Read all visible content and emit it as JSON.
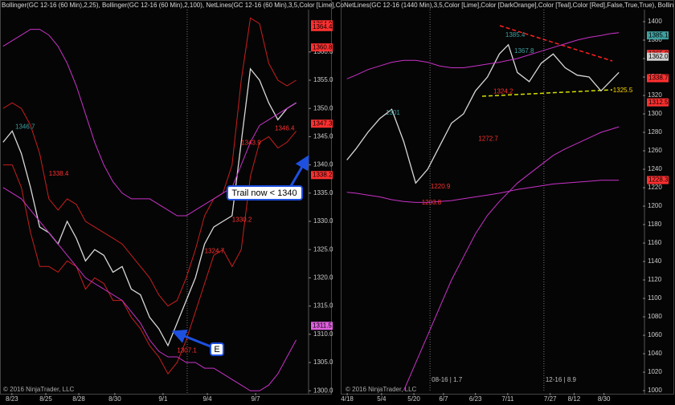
{
  "chart_data": [
    {
      "type": "line",
      "header": "Bollinger(GC 12-16 (60 Min),2,25), Bollinger(GC 12-16 (60 Min),2,100), NetLines(GC 12-16 (60 Min),3,5,Color [Lime],Co",
      "copyright": "© 2016 NinjaTrader, LLC",
      "xlim": [
        0,
        100
      ],
      "ylim": [
        1298.9,
        1369.2
      ],
      "xticks": [
        {
          "value": 3.9,
          "label": "8/23"
        },
        {
          "value": 15,
          "label": "8/25"
        },
        {
          "value": 25.8,
          "label": "8/28"
        },
        {
          "value": 37.6,
          "label": "8/30"
        },
        {
          "value": 53.4,
          "label": "9/1"
        },
        {
          "value": 67.9,
          "label": "9/4"
        },
        {
          "value": 83.7,
          "label": "9/7"
        }
      ],
      "yticks": [
        {
          "value": 1300,
          "label": "1300.0"
        },
        {
          "value": 1305,
          "label": "1305.0"
        },
        {
          "value": 1310,
          "label": "1310.0"
        },
        {
          "value": 1315,
          "label": "1315.0"
        },
        {
          "value": 1320,
          "label": "1320.0"
        },
        {
          "value": 1325,
          "label": "1325.0"
        },
        {
          "value": 1330,
          "label": "1330.0"
        },
        {
          "value": 1335,
          "label": "1335.0"
        },
        {
          "value": 1340,
          "label": "1340.0"
        },
        {
          "value": 1345,
          "label": "1345.0"
        },
        {
          "value": 1350,
          "label": "1350.0"
        },
        {
          "value": 1355,
          "label": "1355.0"
        },
        {
          "value": 1360,
          "label": "1360.0"
        }
      ],
      "x": [
        1,
        4,
        7,
        10,
        13,
        16,
        19,
        22,
        25,
        28,
        31,
        34,
        37,
        40,
        43,
        46,
        49,
        52,
        55,
        58,
        61,
        64,
        67,
        70,
        73,
        76,
        79,
        82,
        85,
        88,
        91,
        94,
        97
      ],
      "series": [
        {
          "color": "#d8d8d8",
          "values": [
            1344,
            1346,
            1342,
            1336,
            1329,
            1328,
            1326,
            1330,
            1327,
            1323,
            1325,
            1324,
            1321,
            1322,
            1318,
            1317,
            1313,
            1311,
            1308,
            1312,
            1316,
            1320,
            1326,
            1329,
            1330,
            1331,
            1344,
            1357,
            1355,
            1351,
            1348,
            1350,
            1351
          ]
        },
        {
          "color": "#c81e1e",
          "values": [
            1350,
            1351,
            1350,
            1347,
            1342,
            1334,
            1332,
            1334,
            1333,
            1330,
            1329,
            1328,
            1327,
            1326,
            1324,
            1322,
            1320,
            1317,
            1315,
            1316,
            1320,
            1325,
            1331,
            1334,
            1335,
            1340,
            1355,
            1366,
            1365,
            1358,
            1355,
            1354,
            1355
          ]
        },
        {
          "color": "#c81e1e",
          "values": [
            1340,
            1340,
            1336,
            1328,
            1322,
            1322,
            1321,
            1323,
            1322,
            1318,
            1320,
            1319,
            1316,
            1316,
            1313,
            1311,
            1308,
            1306,
            1303,
            1305,
            1309,
            1314,
            1319,
            1324,
            1325,
            1322,
            1325,
            1338,
            1344,
            1345,
            1343,
            1344,
            1346
          ]
        },
        {
          "color": "#c832c8",
          "values": [
            1361,
            1362,
            1363,
            1364,
            1364,
            1363,
            1361,
            1358,
            1354,
            1349,
            1344,
            1340,
            1337,
            1335,
            1334,
            1334,
            1334,
            1333,
            1332,
            1331,
            1331,
            1332,
            1333,
            1334,
            1335,
            1336,
            1340,
            1344,
            1347,
            1348,
            1349,
            1350,
            1351
          ]
        },
        {
          "color": "#c832c8",
          "values": [
            1336,
            1335,
            1334,
            1332,
            1330,
            1328,
            1326,
            1324,
            1322,
            1320,
            1319,
            1318,
            1317,
            1316,
            1314,
            1312,
            1309,
            1307,
            1306,
            1306,
            1305,
            1305,
            1304,
            1304,
            1303,
            1302,
            1301,
            1300,
            1300,
            1301,
            1303,
            1306,
            1309
          ]
        }
      ],
      "markers": [
        {
          "x": 61.3
        }
      ],
      "price_labels": [
        {
          "value": 1346.4,
          "x": 90,
          "color": "#ff3030"
        },
        {
          "value": 1343.9,
          "x": 79,
          "color": "#ff3030"
        },
        {
          "value": 1330.2,
          "x": 76,
          "color": "#ff3030"
        },
        {
          "value": 1324.7,
          "x": 67,
          "color": "#ff3030"
        },
        {
          "value": 1307.1,
          "x": 58,
          "color": "#ff3030"
        },
        {
          "value": 1338.4,
          "x": 16,
          "color": "#ff3030"
        },
        {
          "value": 1346.7,
          "x": 5,
          "color": "#40a0a0"
        }
      ],
      "flags": [
        {
          "value": 1364.9,
          "label": "1364.9",
          "color": "#ff3030"
        },
        {
          "value": 1364.4,
          "label": "1364.4",
          "color": "#ff3030"
        },
        {
          "value": 1360.8,
          "label": "1360.8",
          "color": "#ff3030"
        },
        {
          "value": 1347.3,
          "label": "1347.3",
          "color": "#ff3030"
        },
        {
          "value": 1338.2,
          "label": "1338.2",
          "color": "#ff3030"
        },
        {
          "value": 1311.5,
          "label": "1311.5",
          "color": "#e060e0"
        }
      ],
      "annotations": [
        "Trail now < 1340",
        "E"
      ]
    },
    {
      "type": "line",
      "header": "NetLines(GC 12-16 (1440 Min),3,5,Color [Lime],Color [DarkOrange],Color [Teal],Color [Red],False,True,True), Bollin",
      "copyright": "© 2016 NinjaTrader, LLC",
      "xlim": [
        0,
        100
      ],
      "ylim": [
        995.7,
        1423.5
      ],
      "xticks": [
        {
          "value": 1.1,
          "label": "4/18"
        },
        {
          "value": 12.6,
          "label": "5/4"
        },
        {
          "value": 23.4,
          "label": "5/20"
        },
        {
          "value": 33.3,
          "label": "6/7"
        },
        {
          "value": 44,
          "label": "6/23"
        },
        {
          "value": 54.8,
          "label": "7/11"
        },
        {
          "value": 69,
          "label": "7/27"
        },
        {
          "value": 77,
          "label": "8/12"
        },
        {
          "value": 87,
          "label": "8/30"
        }
      ],
      "yticks": [
        1000,
        1020,
        1040,
        1060,
        1080,
        1100,
        1120,
        1140,
        1160,
        1180,
        1200,
        1220,
        1240,
        1260,
        1280,
        1300,
        1320,
        1340,
        1360,
        1380,
        1400
      ],
      "x": [
        1,
        4,
        8,
        12,
        16,
        20,
        24,
        28,
        32,
        36,
        40,
        44,
        48,
        52,
        55,
        58,
        62,
        66,
        70,
        74,
        78,
        82,
        86,
        89,
        92
      ],
      "series": [
        {
          "color": "#d8d8d8",
          "values": [
            1250,
            1262,
            1280,
            1295,
            1305,
            1270,
            1225,
            1240,
            1265,
            1290,
            1300,
            1325,
            1340,
            1365,
            1375,
            1345,
            1335,
            1355,
            1365,
            1350,
            1342,
            1340,
            1325,
            1335,
            1345
          ]
        },
        {
          "color": "#c832c8",
          "values": [
            1338,
            1342,
            1348,
            1352,
            1356,
            1358,
            1358,
            1356,
            1352,
            1350,
            1350,
            1352,
            1354,
            1356,
            1358,
            1360,
            1364,
            1368,
            1372,
            1376,
            1380,
            1383,
            1385,
            1387,
            1388
          ]
        },
        {
          "color": "#c832c8",
          "values": [
            1215,
            1214,
            1212,
            1210,
            1207,
            1205,
            1204,
            1204,
            1205,
            1206,
            1208,
            1210,
            1212,
            1214,
            1216,
            1218,
            1220,
            1222,
            1224,
            1225,
            1226,
            1227,
            1228,
            1228,
            1228
          ]
        },
        {
          "color": "#c832c8",
          "values": [
            null,
            null,
            null,
            null,
            null,
            1000,
            1030,
            1060,
            1090,
            1120,
            1145,
            1170,
            1190,
            1205,
            1215,
            1225,
            1235,
            1245,
            1255,
            1262,
            1268,
            1274,
            1280,
            1283,
            1286
          ]
        }
      ],
      "markers": [
        {
          "x": 28.8,
          "label": "08-16 | 1.7"
        },
        {
          "x": 66.9,
          "label": "12-16 | 8.9"
        }
      ],
      "price_labels": [
        {
          "value": 1385.4,
          "x": 54,
          "color": "#40a0a0"
        },
        {
          "value": 1367.8,
          "x": 57,
          "color": "#40a0a0"
        },
        {
          "value": 1324.2,
          "x": 50,
          "color": "#ff3030"
        },
        {
          "value": 1301,
          "x": 14,
          "color": "#40a0a0"
        },
        {
          "value": 1272.7,
          "x": 45,
          "color": "#ff3030"
        },
        {
          "value": 1220.9,
          "x": 29,
          "color": "#ff3030"
        },
        {
          "value": 1203.8,
          "x": 26,
          "color": "#ff3030"
        },
        {
          "value": 1325.5,
          "x": 90,
          "color": "#ffd700"
        }
      ],
      "flags": [
        {
          "value": 1385.1,
          "label": "1385.1",
          "color": "#40a0a0"
        },
        {
          "value": 1365.0,
          "label": "1365.0",
          "color": "#ff3030"
        },
        {
          "value": 1362.0,
          "label": "1362.0",
          "color": "#d0d0d0"
        },
        {
          "value": 1338.7,
          "label": "1338.7",
          "color": "#ff3030"
        },
        {
          "value": 1312.5,
          "label": "1312.5",
          "color": "#ff3030"
        },
        {
          "value": 1228.3,
          "label": "1228.3",
          "color": "#ff3030"
        }
      ]
    }
  ]
}
